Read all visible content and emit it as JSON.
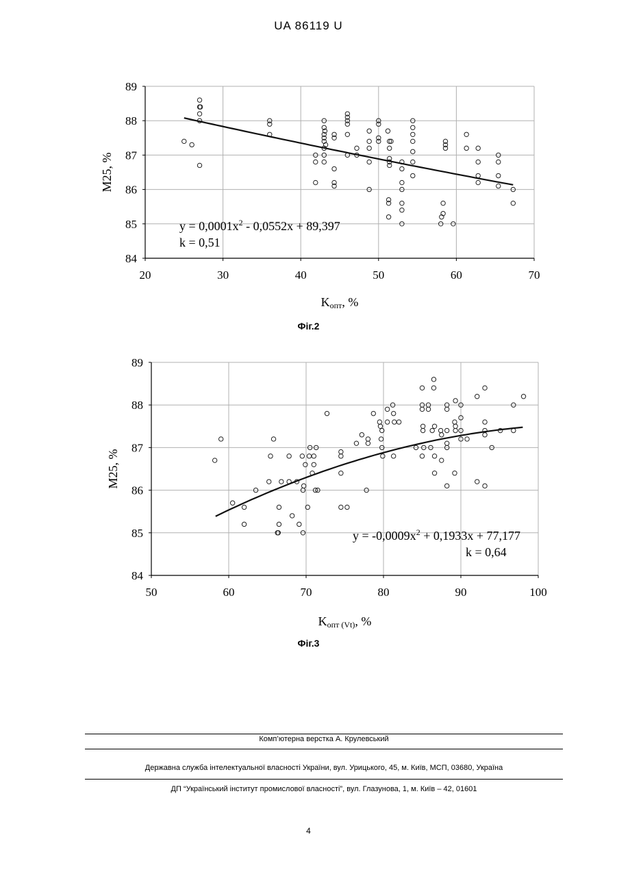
{
  "header": {
    "text": "UA   86119   U"
  },
  "figures": [
    {
      "caption": "Фіг.2"
    },
    {
      "caption": "Фіг.3"
    }
  ],
  "chart_data": [
    {
      "type": "scatter",
      "xlabel_main": "K",
      "xlabel_sub": "опт",
      "xlabel_tail": ", %",
      "ylabel": "M25, %",
      "xlim": [
        20,
        70
      ],
      "ylim": [
        84,
        89
      ],
      "xticks": [
        20,
        30,
        40,
        50,
        60,
        70
      ],
      "yticks": [
        84,
        85,
        86,
        87,
        88,
        89
      ],
      "grid": true,
      "trendline": {
        "type": "polynomial",
        "a": 0.0001,
        "b": -0.0552,
        "c": 89.397,
        "x_range": [
          25,
          67.3
        ]
      },
      "annotation": {
        "equation": "y = 0,0001x",
        "eq_exp": "2",
        "eq_tail": " - 0,0552x + 89,397",
        "k": "k = 0,51"
      },
      "points": [
        [
          25,
          87.4
        ],
        [
          26,
          87.3
        ],
        [
          27,
          88.6
        ],
        [
          27,
          88.4
        ],
        [
          27,
          88.2
        ],
        [
          27,
          88.0
        ],
        [
          27,
          86.7
        ],
        [
          27.1,
          88.4
        ],
        [
          36,
          88.0
        ],
        [
          36,
          87.9
        ],
        [
          36,
          87.6
        ],
        [
          41.9,
          87.0
        ],
        [
          41.9,
          86.8
        ],
        [
          41.9,
          86.2
        ],
        [
          43,
          88.0
        ],
        [
          43,
          87.8
        ],
        [
          43,
          87.6
        ],
        [
          43,
          87.5
        ],
        [
          43,
          87.4
        ],
        [
          43,
          87.2
        ],
        [
          43,
          87.0
        ],
        [
          43,
          86.8
        ],
        [
          43.1,
          87.7
        ],
        [
          43.2,
          87.3
        ],
        [
          44.3,
          87.6
        ],
        [
          44.3,
          87.5
        ],
        [
          44.3,
          86.6
        ],
        [
          44.3,
          86.2
        ],
        [
          44.3,
          86.1
        ],
        [
          46,
          88.2
        ],
        [
          46,
          88.1
        ],
        [
          46,
          88.0
        ],
        [
          46,
          87.9
        ],
        [
          46,
          87.6
        ],
        [
          46,
          87.0
        ],
        [
          47.2,
          87.2
        ],
        [
          47.2,
          87.0
        ],
        [
          48.8,
          87.7
        ],
        [
          48.8,
          87.4
        ],
        [
          48.8,
          87.2
        ],
        [
          48.8,
          86.8
        ],
        [
          48.8,
          86.0
        ],
        [
          50,
          88.0
        ],
        [
          50,
          87.9
        ],
        [
          50,
          87.5
        ],
        [
          50,
          87.4
        ],
        [
          51.2,
          87.7
        ],
        [
          51.4,
          87.4
        ],
        [
          51.4,
          87.2
        ],
        [
          51.4,
          86.9
        ],
        [
          51.4,
          86.8
        ],
        [
          51.4,
          86.7
        ],
        [
          51.3,
          85.7
        ],
        [
          51.3,
          85.6
        ],
        [
          51.3,
          85.2
        ],
        [
          51.6,
          87.4
        ],
        [
          53,
          86.8
        ],
        [
          53,
          86.6
        ],
        [
          53,
          86.2
        ],
        [
          53,
          86.0
        ],
        [
          53,
          85.6
        ],
        [
          53,
          85.4
        ],
        [
          53,
          85.0
        ],
        [
          54.4,
          88.0
        ],
        [
          54.4,
          87.8
        ],
        [
          54.4,
          87.6
        ],
        [
          54.4,
          87.4
        ],
        [
          54.4,
          87.1
        ],
        [
          54.4,
          86.8
        ],
        [
          54.4,
          86.4
        ],
        [
          58,
          85.0
        ],
        [
          58.1,
          85.2
        ],
        [
          58.3,
          85.6
        ],
        [
          58.3,
          85.3
        ],
        [
          58.6,
          87.4
        ],
        [
          58.6,
          87.3
        ],
        [
          58.6,
          87.2
        ],
        [
          59.6,
          85.0
        ],
        [
          61.3,
          87.6
        ],
        [
          61.3,
          87.2
        ],
        [
          62.8,
          87.2
        ],
        [
          62.8,
          86.8
        ],
        [
          62.8,
          86.4
        ],
        [
          62.8,
          86.2
        ],
        [
          65.4,
          87.0
        ],
        [
          65.4,
          86.8
        ],
        [
          65.4,
          86.4
        ],
        [
          65.4,
          86.1
        ],
        [
          67.3,
          86.0
        ],
        [
          67.3,
          85.6
        ]
      ]
    },
    {
      "type": "scatter",
      "xlabel_main": "K",
      "xlabel_sub": "опт (Vt)",
      "xlabel_tail": ", %",
      "ylabel": "M25, %",
      "xlim": [
        50,
        100
      ],
      "ylim": [
        84,
        89
      ],
      "xticks": [
        50,
        60,
        70,
        80,
        90,
        100
      ],
      "yticks": [
        84,
        85,
        86,
        87,
        88,
        89
      ],
      "grid": true,
      "trendline": {
        "type": "polynomial",
        "a": -0.0009,
        "b": 0.1933,
        "c": 77.177,
        "x_range": [
          58.3,
          98
        ]
      },
      "annotation": {
        "equation": "y = -0,0009x",
        "eq_exp": "2",
        "eq_tail": " + 0,1933x + 77,177",
        "k": "k = 0,64"
      },
      "points": [
        [
          58.2,
          86.7
        ],
        [
          59,
          87.2
        ],
        [
          60.5,
          85.7
        ],
        [
          62,
          85.6
        ],
        [
          62,
          85.2
        ],
        [
          63.5,
          86.0
        ],
        [
          65.2,
          86.2
        ],
        [
          65.4,
          86.8
        ],
        [
          65.8,
          87.2
        ],
        [
          66.3,
          85.0
        ],
        [
          66.4,
          85.0
        ],
        [
          66.5,
          85.2
        ],
        [
          66.5,
          85.6
        ],
        [
          66.8,
          86.2
        ],
        [
          67.8,
          86.8
        ],
        [
          67.8,
          86.2
        ],
        [
          68.2,
          85.4
        ],
        [
          68.8,
          86.2
        ],
        [
          69.1,
          85.2
        ],
        [
          69.5,
          86.8
        ],
        [
          69.6,
          86.0
        ],
        [
          69.6,
          85.0
        ],
        [
          69.7,
          86.1
        ],
        [
          69.9,
          86.6
        ],
        [
          70.2,
          85.6
        ],
        [
          70.4,
          86.8
        ],
        [
          70.5,
          87.0
        ],
        [
          70.8,
          86.4
        ],
        [
          71.0,
          86.8
        ],
        [
          71.0,
          86.6
        ],
        [
          71.2,
          86.0
        ],
        [
          71.5,
          86.0
        ],
        [
          71.3,
          87.0
        ],
        [
          72.7,
          87.8
        ],
        [
          74.5,
          86.9
        ],
        [
          74.5,
          86.8
        ],
        [
          74.5,
          86.4
        ],
        [
          74.5,
          85.6
        ],
        [
          75.3,
          85.6
        ],
        [
          76.5,
          87.1
        ],
        [
          77.2,
          87.3
        ],
        [
          77.8,
          86.0
        ],
        [
          78.0,
          87.2
        ],
        [
          78.0,
          87.1
        ],
        [
          78.7,
          87.8
        ],
        [
          79.5,
          87.6
        ],
        [
          79.6,
          87.5
        ],
        [
          79.7,
          87.2
        ],
        [
          79.8,
          87.0
        ],
        [
          79.9,
          86.8
        ],
        [
          79.8,
          87.4
        ],
        [
          80.5,
          87.6
        ],
        [
          80.5,
          87.9
        ],
        [
          81.2,
          88.0
        ],
        [
          81.3,
          87.8
        ],
        [
          81.4,
          87.6
        ],
        [
          81.3,
          86.8
        ],
        [
          82.0,
          87.6
        ],
        [
          84.2,
          87.0
        ],
        [
          85.0,
          88.4
        ],
        [
          85.0,
          88.0
        ],
        [
          85.0,
          87.9
        ],
        [
          85.1,
          87.5
        ],
        [
          85.1,
          87.4
        ],
        [
          85.2,
          87.0
        ],
        [
          85.0,
          86.8
        ],
        [
          85.8,
          88.0
        ],
        [
          85.8,
          87.9
        ],
        [
          86.1,
          87.0
        ],
        [
          86.3,
          87.4
        ],
        [
          86.5,
          88.6
        ],
        [
          86.5,
          88.4
        ],
        [
          86.6,
          87.5
        ],
        [
          86.6,
          86.8
        ],
        [
          86.6,
          86.4
        ],
        [
          87.4,
          87.4
        ],
        [
          87.5,
          87.3
        ],
        [
          87.5,
          86.7
        ],
        [
          88.2,
          88.0
        ],
        [
          88.2,
          87.9
        ],
        [
          88.2,
          87.4
        ],
        [
          88.2,
          87.1
        ],
        [
          88.2,
          87.0
        ],
        [
          88.2,
          86.1
        ],
        [
          89.3,
          88.1
        ],
        [
          89.2,
          87.6
        ],
        [
          89.3,
          87.5
        ],
        [
          89.3,
          87.4
        ],
        [
          89.2,
          86.4
        ],
        [
          90.0,
          88.0
        ],
        [
          90.0,
          87.7
        ],
        [
          90.0,
          87.4
        ],
        [
          90.0,
          87.2
        ],
        [
          90.8,
          87.2
        ],
        [
          92.1,
          88.2
        ],
        [
          92.1,
          86.2
        ],
        [
          93.1,
          88.4
        ],
        [
          93.1,
          87.6
        ],
        [
          93.1,
          87.4
        ],
        [
          93.1,
          87.3
        ],
        [
          93.1,
          86.1
        ],
        [
          94.0,
          87.0
        ],
        [
          95.1,
          87.4
        ],
        [
          96.8,
          88.0
        ],
        [
          96.8,
          87.4
        ],
        [
          98.1,
          88.2
        ]
      ]
    }
  ],
  "footer": {
    "line1": "Комп’ютерна верстка А. Крулевський",
    "line2": "Державна служба інтелектуальної власності України, вул. Урицького, 45, м. Київ, МСП, 03680, Україна",
    "line3": "ДП “Український інститут промислової власності”, вул. Глазунова, 1, м. Київ – 42, 01601",
    "page": "4"
  }
}
